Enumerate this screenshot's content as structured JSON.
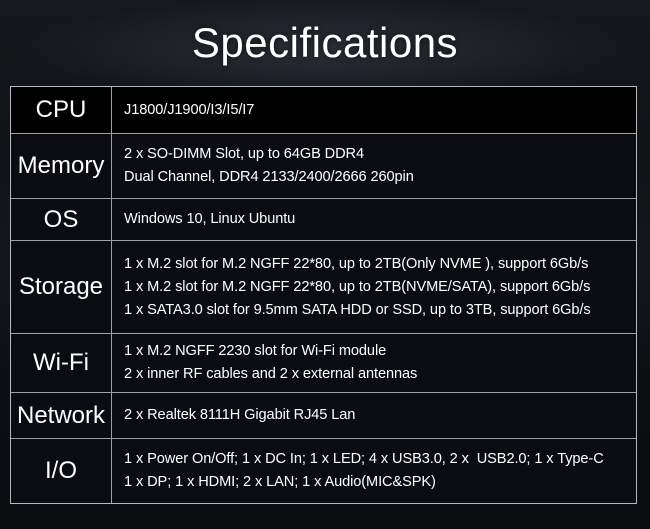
{
  "title": "Specifications",
  "colors": {
    "background": "#0b0d11",
    "table_border": "#9ba1a8",
    "row_bg": "#0a0c11",
    "cpu_row_bg": "#000000",
    "text": "#ffffff"
  },
  "table": {
    "rows": [
      {
        "label": "CPU",
        "lines": [
          "J1800/J1900/I3/I5/I7"
        ]
      },
      {
        "label": "Memory",
        "lines": [
          "2 x SO-DIMM Slot, up to 64GB DDR4",
          "Dual Channel, DDR4 2133/2400/2666 260pin"
        ]
      },
      {
        "label": "OS",
        "lines": [
          "Windows 10, Linux Ubuntu"
        ]
      },
      {
        "label": "Storage",
        "lines": [
          "1 x M.2 slot for M.2 NGFF 22*80, up to 2TB(Only NVME ), support 6Gb/s",
          "1 x M.2 slot for M.2 NGFF 22*80, up to 2TB(NVME/SATA), support 6Gb/s",
          "1 x SATA3.0 slot for 9.5mm SATA HDD or SSD, up to 3TB, support 6Gb/s"
        ]
      },
      {
        "label": "Wi-Fi",
        "lines": [
          "1 x M.2 NGFF 2230 slot for Wi-Fi module",
          "2 x inner RF cables and 2 x external antennas"
        ]
      },
      {
        "label": "Network",
        "lines": [
          "2 x Realtek 8111H Gigabit RJ45 Lan"
        ]
      },
      {
        "label": "I/O",
        "lines": [
          "1 x Power On/Off; 1 x DC In; 1 x LED; 4 x USB3.0, 2 x  USB2.0; 1 x Type-C",
          "1 x DP; 1 x HDMI; 2 x LAN; 1 x Audio(MIC&SPK)"
        ]
      }
    ]
  }
}
